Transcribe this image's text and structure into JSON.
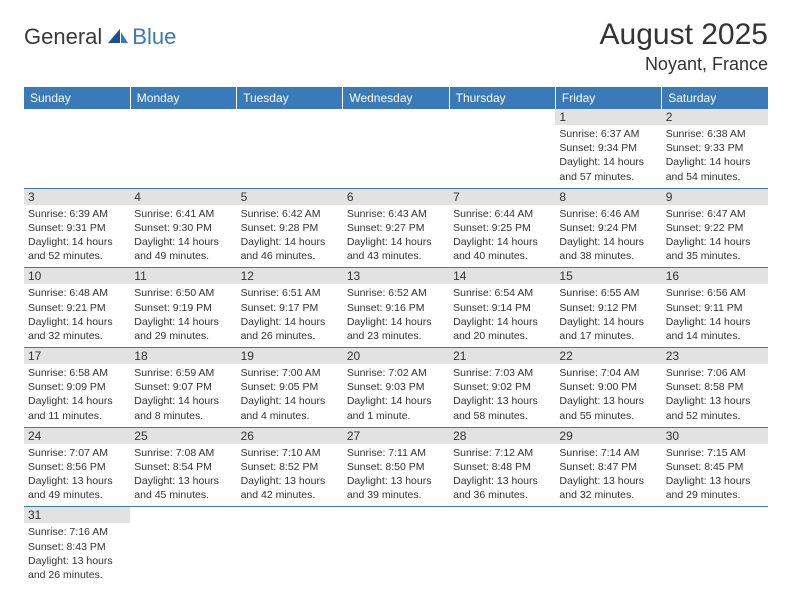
{
  "logo": {
    "part1": "General",
    "part2": "Blue"
  },
  "title": "August 2025",
  "location": "Noyant, France",
  "day_headers": [
    "Sunday",
    "Monday",
    "Tuesday",
    "Wednesday",
    "Thursday",
    "Friday",
    "Saturday"
  ],
  "colors": {
    "header_bg": "#3a7ab8",
    "header_text": "#ffffff",
    "daynum_bg": "#e2e2e2",
    "row_divider": "#3a7ab8",
    "text": "#333333"
  },
  "typography": {
    "title_fontsize": 30,
    "location_fontsize": 18,
    "header_fontsize": 12,
    "cell_fontsize": 10.5
  },
  "weeks": [
    [
      null,
      null,
      null,
      null,
      null,
      {
        "n": "1",
        "sunrise": "Sunrise: 6:37 AM",
        "sunset": "Sunset: 9:34 PM",
        "dl1": "Daylight: 14 hours",
        "dl2": "and 57 minutes."
      },
      {
        "n": "2",
        "sunrise": "Sunrise: 6:38 AM",
        "sunset": "Sunset: 9:33 PM",
        "dl1": "Daylight: 14 hours",
        "dl2": "and 54 minutes."
      }
    ],
    [
      {
        "n": "3",
        "sunrise": "Sunrise: 6:39 AM",
        "sunset": "Sunset: 9:31 PM",
        "dl1": "Daylight: 14 hours",
        "dl2": "and 52 minutes."
      },
      {
        "n": "4",
        "sunrise": "Sunrise: 6:41 AM",
        "sunset": "Sunset: 9:30 PM",
        "dl1": "Daylight: 14 hours",
        "dl2": "and 49 minutes."
      },
      {
        "n": "5",
        "sunrise": "Sunrise: 6:42 AM",
        "sunset": "Sunset: 9:28 PM",
        "dl1": "Daylight: 14 hours",
        "dl2": "and 46 minutes."
      },
      {
        "n": "6",
        "sunrise": "Sunrise: 6:43 AM",
        "sunset": "Sunset: 9:27 PM",
        "dl1": "Daylight: 14 hours",
        "dl2": "and 43 minutes."
      },
      {
        "n": "7",
        "sunrise": "Sunrise: 6:44 AM",
        "sunset": "Sunset: 9:25 PM",
        "dl1": "Daylight: 14 hours",
        "dl2": "and 40 minutes."
      },
      {
        "n": "8",
        "sunrise": "Sunrise: 6:46 AM",
        "sunset": "Sunset: 9:24 PM",
        "dl1": "Daylight: 14 hours",
        "dl2": "and 38 minutes."
      },
      {
        "n": "9",
        "sunrise": "Sunrise: 6:47 AM",
        "sunset": "Sunset: 9:22 PM",
        "dl1": "Daylight: 14 hours",
        "dl2": "and 35 minutes."
      }
    ],
    [
      {
        "n": "10",
        "sunrise": "Sunrise: 6:48 AM",
        "sunset": "Sunset: 9:21 PM",
        "dl1": "Daylight: 14 hours",
        "dl2": "and 32 minutes."
      },
      {
        "n": "11",
        "sunrise": "Sunrise: 6:50 AM",
        "sunset": "Sunset: 9:19 PM",
        "dl1": "Daylight: 14 hours",
        "dl2": "and 29 minutes."
      },
      {
        "n": "12",
        "sunrise": "Sunrise: 6:51 AM",
        "sunset": "Sunset: 9:17 PM",
        "dl1": "Daylight: 14 hours",
        "dl2": "and 26 minutes."
      },
      {
        "n": "13",
        "sunrise": "Sunrise: 6:52 AM",
        "sunset": "Sunset: 9:16 PM",
        "dl1": "Daylight: 14 hours",
        "dl2": "and 23 minutes."
      },
      {
        "n": "14",
        "sunrise": "Sunrise: 6:54 AM",
        "sunset": "Sunset: 9:14 PM",
        "dl1": "Daylight: 14 hours",
        "dl2": "and 20 minutes."
      },
      {
        "n": "15",
        "sunrise": "Sunrise: 6:55 AM",
        "sunset": "Sunset: 9:12 PM",
        "dl1": "Daylight: 14 hours",
        "dl2": "and 17 minutes."
      },
      {
        "n": "16",
        "sunrise": "Sunrise: 6:56 AM",
        "sunset": "Sunset: 9:11 PM",
        "dl1": "Daylight: 14 hours",
        "dl2": "and 14 minutes."
      }
    ],
    [
      {
        "n": "17",
        "sunrise": "Sunrise: 6:58 AM",
        "sunset": "Sunset: 9:09 PM",
        "dl1": "Daylight: 14 hours",
        "dl2": "and 11 minutes."
      },
      {
        "n": "18",
        "sunrise": "Sunrise: 6:59 AM",
        "sunset": "Sunset: 9:07 PM",
        "dl1": "Daylight: 14 hours",
        "dl2": "and 8 minutes."
      },
      {
        "n": "19",
        "sunrise": "Sunrise: 7:00 AM",
        "sunset": "Sunset: 9:05 PM",
        "dl1": "Daylight: 14 hours",
        "dl2": "and 4 minutes."
      },
      {
        "n": "20",
        "sunrise": "Sunrise: 7:02 AM",
        "sunset": "Sunset: 9:03 PM",
        "dl1": "Daylight: 14 hours",
        "dl2": "and 1 minute."
      },
      {
        "n": "21",
        "sunrise": "Sunrise: 7:03 AM",
        "sunset": "Sunset: 9:02 PM",
        "dl1": "Daylight: 13 hours",
        "dl2": "and 58 minutes."
      },
      {
        "n": "22",
        "sunrise": "Sunrise: 7:04 AM",
        "sunset": "Sunset: 9:00 PM",
        "dl1": "Daylight: 13 hours",
        "dl2": "and 55 minutes."
      },
      {
        "n": "23",
        "sunrise": "Sunrise: 7:06 AM",
        "sunset": "Sunset: 8:58 PM",
        "dl1": "Daylight: 13 hours",
        "dl2": "and 52 minutes."
      }
    ],
    [
      {
        "n": "24",
        "sunrise": "Sunrise: 7:07 AM",
        "sunset": "Sunset: 8:56 PM",
        "dl1": "Daylight: 13 hours",
        "dl2": "and 49 minutes."
      },
      {
        "n": "25",
        "sunrise": "Sunrise: 7:08 AM",
        "sunset": "Sunset: 8:54 PM",
        "dl1": "Daylight: 13 hours",
        "dl2": "and 45 minutes."
      },
      {
        "n": "26",
        "sunrise": "Sunrise: 7:10 AM",
        "sunset": "Sunset: 8:52 PM",
        "dl1": "Daylight: 13 hours",
        "dl2": "and 42 minutes."
      },
      {
        "n": "27",
        "sunrise": "Sunrise: 7:11 AM",
        "sunset": "Sunset: 8:50 PM",
        "dl1": "Daylight: 13 hours",
        "dl2": "and 39 minutes."
      },
      {
        "n": "28",
        "sunrise": "Sunrise: 7:12 AM",
        "sunset": "Sunset: 8:48 PM",
        "dl1": "Daylight: 13 hours",
        "dl2": "and 36 minutes."
      },
      {
        "n": "29",
        "sunrise": "Sunrise: 7:14 AM",
        "sunset": "Sunset: 8:47 PM",
        "dl1": "Daylight: 13 hours",
        "dl2": "and 32 minutes."
      },
      {
        "n": "30",
        "sunrise": "Sunrise: 7:15 AM",
        "sunset": "Sunset: 8:45 PM",
        "dl1": "Daylight: 13 hours",
        "dl2": "and 29 minutes."
      }
    ],
    [
      {
        "n": "31",
        "sunrise": "Sunrise: 7:16 AM",
        "sunset": "Sunset: 8:43 PM",
        "dl1": "Daylight: 13 hours",
        "dl2": "and 26 minutes."
      },
      null,
      null,
      null,
      null,
      null,
      null
    ]
  ]
}
